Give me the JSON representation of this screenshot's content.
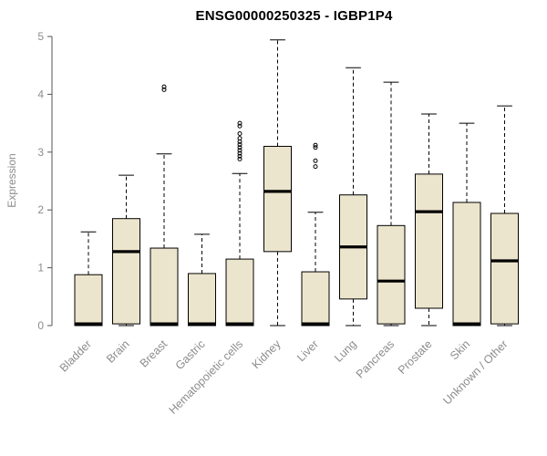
{
  "chart_data": {
    "type": "boxplot",
    "title": "ENSG00000250325 - IGBP1P4",
    "xlabel": "",
    "ylabel": "Expression",
    "ylim": [
      0,
      5
    ],
    "yticks": [
      0,
      1,
      2,
      3,
      4,
      5
    ],
    "grid": false,
    "legend": "none",
    "box_fill": "#ece5cd",
    "box_stroke": "#000000",
    "axis_color": "#555555",
    "label_color": "#8c8c8c",
    "categories": [
      "Bladder",
      "Brain",
      "Breast",
      "Gastric",
      "Hematopoietic cells",
      "Kidney",
      "Liver",
      "Lung",
      "Pancreas",
      "Prostate",
      "Skin",
      "Unknown / Other"
    ],
    "boxes": [
      {
        "label": "Bladder",
        "low": 0,
        "q1": 0,
        "median": 0.03,
        "q3": 0.88,
        "high": 1.62,
        "outliers": []
      },
      {
        "label": "Brain",
        "low": 0,
        "q1": 0.03,
        "median": 1.28,
        "q3": 1.85,
        "high": 2.6,
        "outliers": []
      },
      {
        "label": "Breast",
        "low": 0,
        "q1": 0,
        "median": 0.03,
        "q3": 1.34,
        "high": 2.97,
        "outliers": [
          4.08,
          4.13
        ]
      },
      {
        "label": "Gastric",
        "low": 0,
        "q1": 0,
        "median": 0.03,
        "q3": 0.9,
        "high": 1.58,
        "outliers": []
      },
      {
        "label": "Hematopoietic cells",
        "low": 0,
        "q1": 0,
        "median": 0.03,
        "q3": 1.15,
        "high": 2.63,
        "outliers": [
          2.88,
          2.93,
          2.98,
          3.03,
          3.08,
          3.13,
          3.18,
          3.24,
          3.32,
          3.45,
          3.5
        ]
      },
      {
        "label": "Kidney",
        "low": 0,
        "q1": 1.28,
        "median": 2.32,
        "q3": 3.1,
        "high": 4.94,
        "outliers": []
      },
      {
        "label": "Liver",
        "low": 0,
        "q1": 0,
        "median": 0.03,
        "q3": 0.93,
        "high": 1.96,
        "outliers": [
          2.75,
          2.85,
          3.08,
          3.12
        ]
      },
      {
        "label": "Lung",
        "low": 0,
        "q1": 0.46,
        "median": 1.36,
        "q3": 2.26,
        "high": 4.46,
        "outliers": []
      },
      {
        "label": "Pancreas",
        "low": 0,
        "q1": 0.03,
        "median": 0.77,
        "q3": 1.73,
        "high": 4.21,
        "outliers": []
      },
      {
        "label": "Prostate",
        "low": 0,
        "q1": 0.3,
        "median": 1.97,
        "q3": 2.62,
        "high": 3.66,
        "outliers": []
      },
      {
        "label": "Skin",
        "low": 0,
        "q1": 0,
        "median": 0.03,
        "q3": 2.13,
        "high": 3.5,
        "outliers": []
      },
      {
        "label": "Unknown / Other",
        "low": 0,
        "q1": 0.03,
        "median": 1.12,
        "q3": 1.94,
        "high": 3.8,
        "outliers": []
      }
    ]
  }
}
